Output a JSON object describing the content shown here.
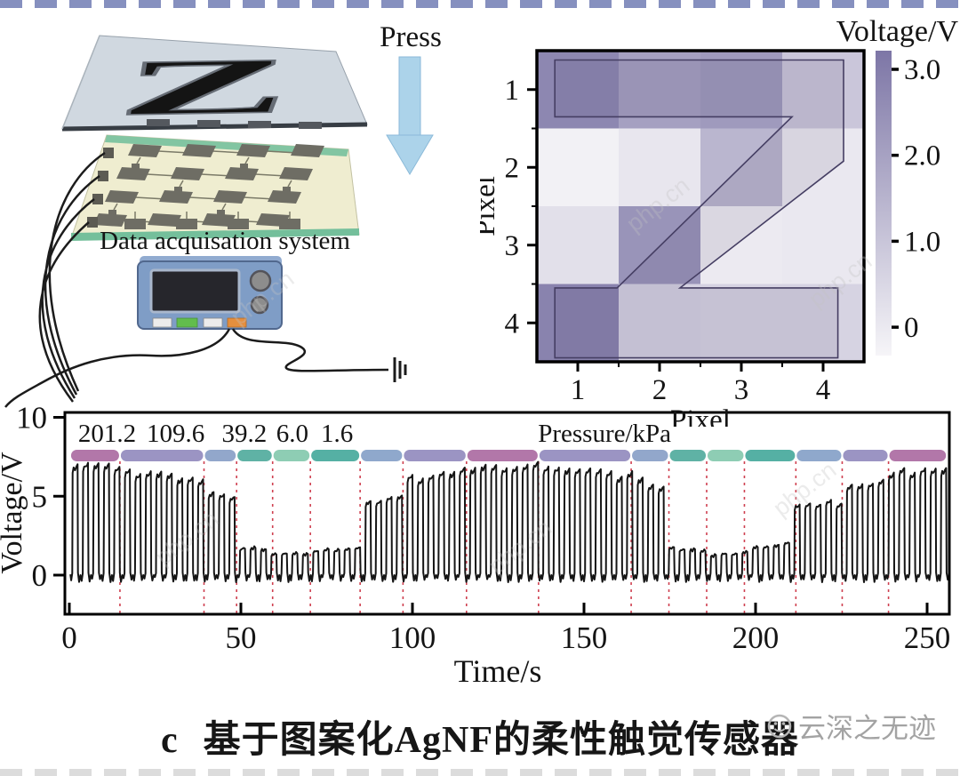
{
  "figure": {
    "press_label": "Press",
    "daq_label": "Data acquisation system",
    "stamp_letter": "Z",
    "colors": {
      "press_arrow": "#acd3ea",
      "glass": "#ccd5dd",
      "substrate": "#efedd0",
      "substrate_edge": "#7cc29f",
      "electrode_pad": "#6e6d64",
      "device_body": "#7f9dc6",
      "device_screen": "#26262c",
      "button_colors": [
        "#ececec",
        "#62bd4d",
        "#ececec",
        "#e58f3e"
      ]
    }
  },
  "caption": {
    "index": "c",
    "text": "基于图案化AgNF的柔性触觉传感器"
  },
  "watermark": {
    "site_text": "php.cn",
    "brand_text": "云深之无迹"
  },
  "chart_data": [
    {
      "type": "heatmap",
      "xlabel": "Pixel",
      "ylabel": "Pixel",
      "x_ticks": [
        "1",
        "2",
        "3",
        "4"
      ],
      "y_ticks": [
        "1",
        "2",
        "3",
        "4"
      ],
      "values": [
        [
          2.6,
          2.0,
          2.15,
          1.1
        ],
        [
          0.1,
          0.35,
          1.5,
          0.3
        ],
        [
          0.5,
          2.3,
          0.25,
          0.3
        ],
        [
          2.7,
          0.85,
          0.8,
          0.8
        ]
      ],
      "overlay": "Z-pattern-outline",
      "colormap": {
        "low": "#f6f5f8",
        "high": "#7d76a6"
      },
      "colorbar": {
        "label": "Voltage/V",
        "range": [
          0,
          3
        ],
        "ticks": [
          {
            "label": "3.0",
            "value": 3
          },
          {
            "label": "2.0",
            "value": 2
          },
          {
            "label": "1.0",
            "value": 1
          },
          {
            "label": "0",
            "value": 0
          }
        ]
      }
    },
    {
      "type": "line",
      "xlabel": "Time/s",
      "ylabel": "Voltage/V",
      "x_ticks": [
        "0",
        "50",
        "100",
        "150",
        "200",
        "250"
      ],
      "y_ticks": [
        "0",
        "5",
        "10"
      ],
      "xlim": [
        0,
        256
      ],
      "ylim": [
        -2.5,
        10.3
      ],
      "line_color": "#151515",
      "divider_color": "#cf4050",
      "annotation_labels": [
        {
          "text": "201.2",
          "t": 11
        },
        {
          "text": "109.6",
          "t": 31
        },
        {
          "text": "39.2",
          "t": 51
        },
        {
          "text": "6.0",
          "t": 65
        },
        {
          "text": "1.6",
          "t": 78
        },
        {
          "text": "Pressure/kPa",
          "t": 156
        }
      ],
      "segments": [
        {
          "t0": 0.5,
          "t1": 14.5,
          "pressure_kpa": 201.2,
          "a0": 6.6,
          "a1": 6.9,
          "band_color": "#b277a9"
        },
        {
          "t0": 15,
          "t1": 39,
          "pressure_kpa": 109.6,
          "a0": 6.5,
          "a1": 5.9,
          "band_color": "#9b94c3"
        },
        {
          "t0": 39.5,
          "t1": 48.5,
          "pressure_kpa": 39.2,
          "a0": 5.2,
          "a1": 4.7,
          "band_color": "#92a7cb"
        },
        {
          "t0": 49,
          "t1": 59,
          "pressure_kpa": 6.0,
          "a0": 1.7,
          "a1": 1.6,
          "band_color": "#5fb2a5"
        },
        {
          "t0": 59.5,
          "t1": 70,
          "pressure_kpa": 1.6,
          "a0": 1.3,
          "a1": 1.3,
          "band_color": "#8ecdb4"
        },
        {
          "t0": 70.5,
          "t1": 84.5,
          "a0": 1.5,
          "a1": 1.7,
          "band_color": "#55b0a4"
        },
        {
          "t0": 85,
          "t1": 97,
          "a0": 4.4,
          "a1": 4.8,
          "band_color": "#8fa8cc"
        },
        {
          "t0": 97.5,
          "t1": 115.5,
          "a0": 5.9,
          "a1": 6.5,
          "band_color": "#9b94c3"
        },
        {
          "t0": 116,
          "t1": 136.5,
          "a0": 6.7,
          "a1": 6.8,
          "band_color": "#b277a9"
        },
        {
          "t0": 137,
          "t1": 163.5,
          "a0": 6.5,
          "a1": 6.2,
          "band_color": "#9b94c3"
        },
        {
          "t0": 164,
          "t1": 174.5,
          "a0": 5.9,
          "a1": 5.4,
          "band_color": "#92a7cb"
        },
        {
          "t0": 175,
          "t1": 185.5,
          "a0": 1.7,
          "a1": 1.5,
          "band_color": "#5fb2a5"
        },
        {
          "t0": 186,
          "t1": 196.5,
          "a0": 1.2,
          "a1": 1.4,
          "band_color": "#8ecdb4"
        },
        {
          "t0": 197,
          "t1": 211.5,
          "a0": 1.6,
          "a1": 2.0,
          "band_color": "#55b0a4"
        },
        {
          "t0": 212,
          "t1": 225,
          "a0": 4.2,
          "a1": 4.6,
          "band_color": "#8fa8cc"
        },
        {
          "t0": 225.5,
          "t1": 238.5,
          "a0": 5.3,
          "a1": 5.8,
          "band_color": "#9b94c3"
        },
        {
          "t0": 239,
          "t1": 255.5,
          "a0": 6.3,
          "a1": 6.7,
          "band_color": "#b277a9"
        }
      ]
    }
  ]
}
